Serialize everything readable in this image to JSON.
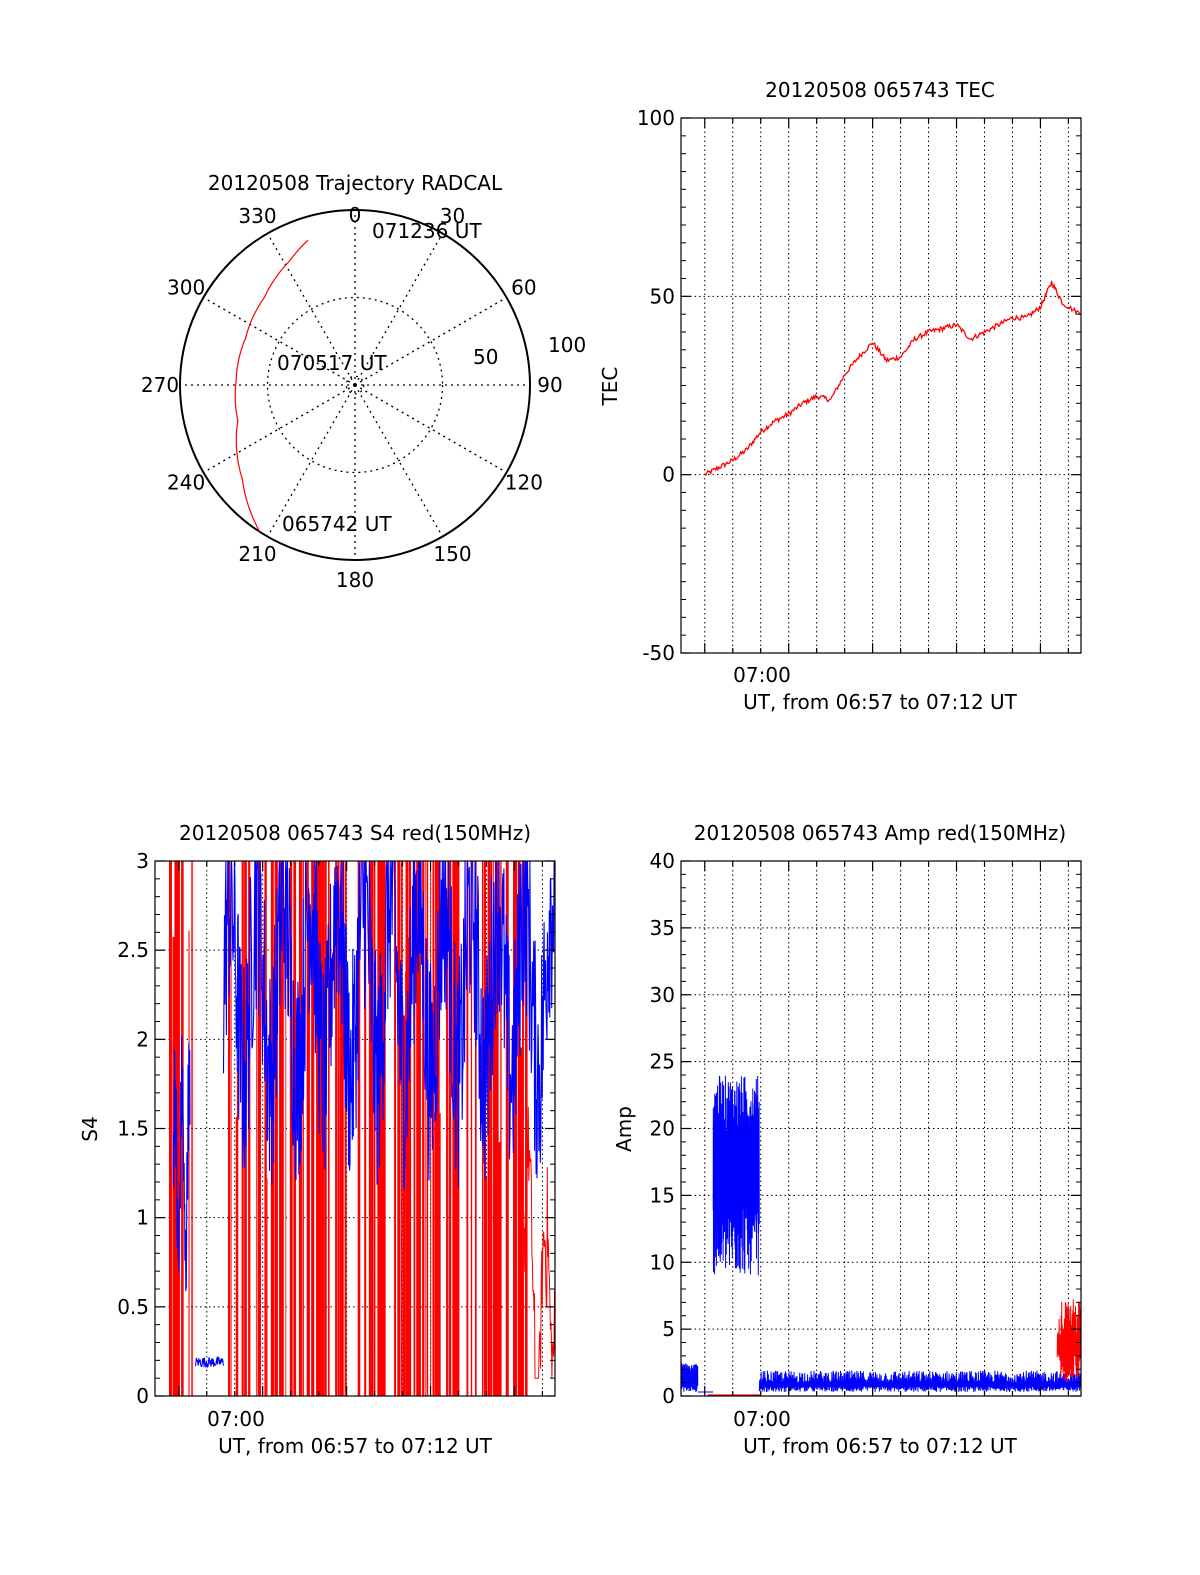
{
  "colors": {
    "red": "#ff0000",
    "blue": "#0000ff",
    "axis": "#000000",
    "grid": "#000000"
  },
  "polar": {
    "title": "20120508 Trajectory RADCAL",
    "azimuth_labels": [
      "0",
      "30",
      "60",
      "90",
      "120",
      "150",
      "180",
      "210",
      "240",
      "270",
      "300",
      "330"
    ],
    "radius_labels": [
      "50",
      "100"
    ],
    "start_label": "065742 UT",
    "mid_label": "070517 UT",
    "end_label": "071236 UT"
  },
  "tec": {
    "title": "20120508 065743 TEC",
    "ylabel": "TEC",
    "xlabel": "UT, from 06:57 to 07:12 UT",
    "xtick": "07:00",
    "yticks": [
      "-50",
      "0",
      "50",
      "100"
    ]
  },
  "s4": {
    "title": "20120508 065743 S4 red(150MHz)",
    "ylabel": "S4",
    "xlabel": "UT, from 06:57 to 07:12 UT",
    "xtick": "07:00",
    "yticks": [
      "0",
      "0.5",
      "1",
      "1.5",
      "2",
      "2.5",
      "3"
    ]
  },
  "amp": {
    "title": "20120508 065743 Amp red(150MHz)",
    "ylabel": "Amp",
    "xlabel": "UT, from 06:57 to 07:12 UT",
    "xtick": "07:00",
    "yticks": [
      "0",
      "5",
      "10",
      "15",
      "20",
      "25",
      "30",
      "35",
      "40"
    ]
  },
  "chart_data": [
    {
      "type": "scatter",
      "title": "20120508 Trajectory RADCAL",
      "projection": "polar",
      "series": [
        {
          "color": "#ff0000",
          "points": [
            {
              "time": "065742 UT",
              "azimuth": 213,
              "zenith": 100
            },
            {
              "azimuth": 230,
              "zenith": 84
            },
            {
              "azimuth": 253,
              "zenith": 70
            },
            {
              "azimuth": 272,
              "zenith": 68
            },
            {
              "azimuth": 293,
              "zenith": 68
            },
            {
              "azimuth": 314,
              "zenith": 72
            },
            {
              "azimuth": 332,
              "zenith": 80
            },
            {
              "time": "071236 UT",
              "azimuth": 342,
              "zenith": 87
            }
          ]
        }
      ],
      "rlim": [
        0,
        100
      ]
    },
    {
      "type": "line",
      "title": "20120508 065743 TEC",
      "xlabel": "UT, from 06:57 to 07:12 UT",
      "ylabel": "TEC",
      "xlim_minutes_after_0657": [
        -0.85,
        13.45
      ],
      "ylim": [
        -50,
        100
      ],
      "grid": true,
      "series": [
        {
          "color": "#ff0000",
          "x": [
            0,
            0.5,
            1.0,
            1.5,
            2.0,
            2.5,
            3.0,
            3.5,
            4.0,
            4.5,
            5.0,
            5.5,
            6.0,
            6.5,
            7.0,
            7.5,
            8.0,
            8.5,
            9.0,
            9.5,
            10.0,
            10.5,
            11.0,
            11.5,
            12.0,
            12.4,
            12.8,
            13.45
          ],
          "y": [
            0,
            2,
            4,
            7,
            12,
            15,
            17,
            20,
            22,
            21,
            28,
            33,
            37,
            32,
            33,
            38,
            40,
            41,
            42,
            38,
            40,
            42,
            44,
            44,
            47,
            54,
            48,
            45
          ]
        }
      ]
    },
    {
      "type": "line",
      "title": "20120508 065743 S4 red(150MHz)",
      "xlabel": "UT, from 06:57 to 07:12 UT",
      "ylabel": "S4",
      "xlim_minutes_after_0657": [
        -0.85,
        13.45
      ],
      "ylim": [
        0,
        3
      ],
      "grid": true,
      "series": [
        {
          "name": "S4 red(150MHz)",
          "color": "#ff0000",
          "note": "dense spikes between 0 and 3 across the interval; smooth segment near end (~13 min) between 0.1 and 1.5"
        },
        {
          "color": "#0000ff",
          "segments": [
            {
              "x_range": [
                -0.2,
                0.4
              ],
              "y_approx": [
                0.9,
                1.9
              ]
            },
            {
              "x_range": [
                0.6,
                1.6
              ],
              "y_approx": [
                0.2,
                0.22
              ]
            },
            {
              "x_range": [
                1.6,
                13.45
              ],
              "y_approx": [
                1.2,
                3.0
              ]
            }
          ]
        }
      ]
    },
    {
      "type": "line",
      "title": "20120508 065743 Amp red(150MHz)",
      "xlabel": "UT, from 06:57 to 07:12 UT",
      "ylabel": "Amp",
      "xlim_minutes_after_0657": [
        -0.85,
        13.45
      ],
      "ylim": [
        0,
        40
      ],
      "grid": true,
      "series": [
        {
          "color": "#0000ff",
          "segments": [
            {
              "x_range": [
                -0.85,
                -0.25
              ],
              "y_approx": [
                0.2,
                2.5
              ]
            },
            {
              "x_range": [
                0.3,
                1.95
              ],
              "y_approx": [
                8,
                24.5
              ]
            },
            {
              "x_range": [
                1.95,
                13.45
              ],
              "y_approx": [
                0.3,
                2.0
              ]
            }
          ]
        },
        {
          "name": "Amp red(150MHz)",
          "color": "#ff0000",
          "segments": [
            {
              "x_range": [
                0.1,
                2.0
              ],
              "y_approx": [
                0,
                0.1
              ]
            },
            {
              "x_range": [
                12.6,
                13.45
              ],
              "y_approx": [
                1.0,
                7.3
              ]
            }
          ]
        }
      ]
    }
  ]
}
